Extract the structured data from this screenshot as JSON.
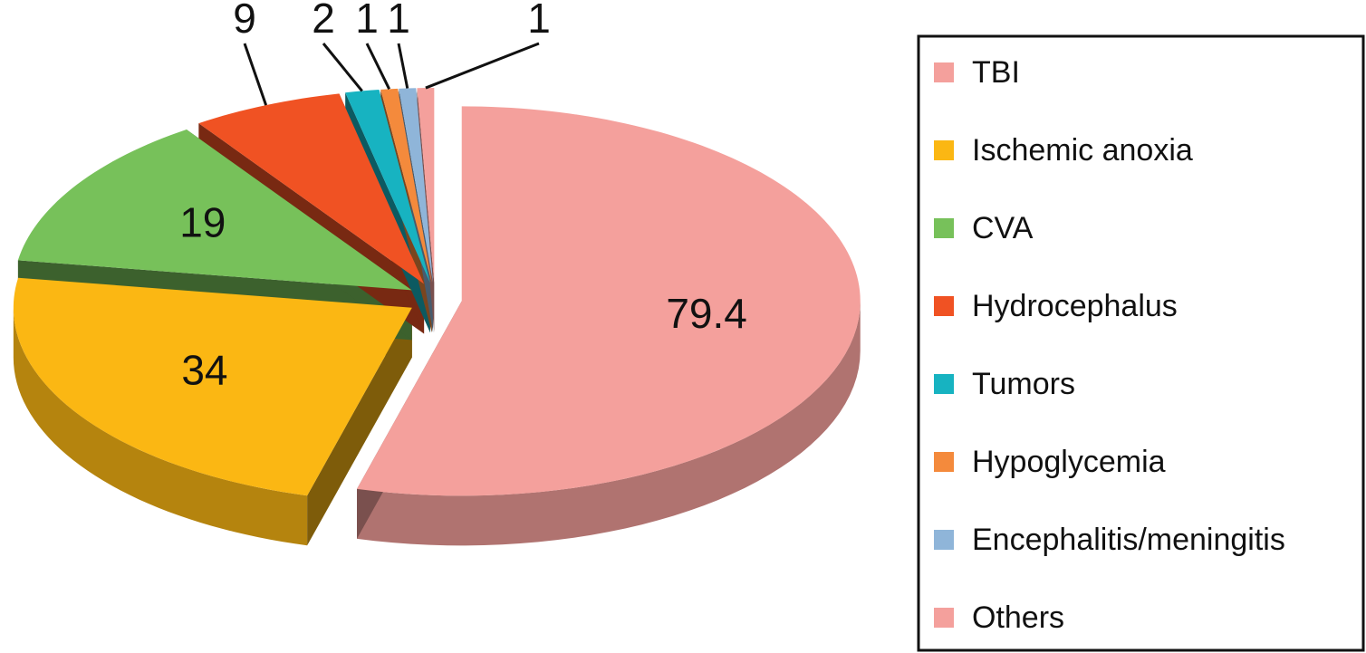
{
  "chart_data": {
    "type": "pie",
    "categories": [
      "TBI",
      "Ischemic anoxia",
      "CVA",
      "Hydrocephalus",
      "Tumors",
      "Hypoglycemia",
      "Encephalitis/meningitis",
      "Others"
    ],
    "values": [
      79.4,
      34,
      19,
      9,
      2,
      1,
      1,
      1
    ],
    "colors": [
      "#f4a09c",
      "#fbb713",
      "#77c15a",
      "#f05223",
      "#17b3c1",
      "#f48a3c",
      "#8fb5d9",
      "#f4a09c"
    ],
    "legend": "right"
  }
}
